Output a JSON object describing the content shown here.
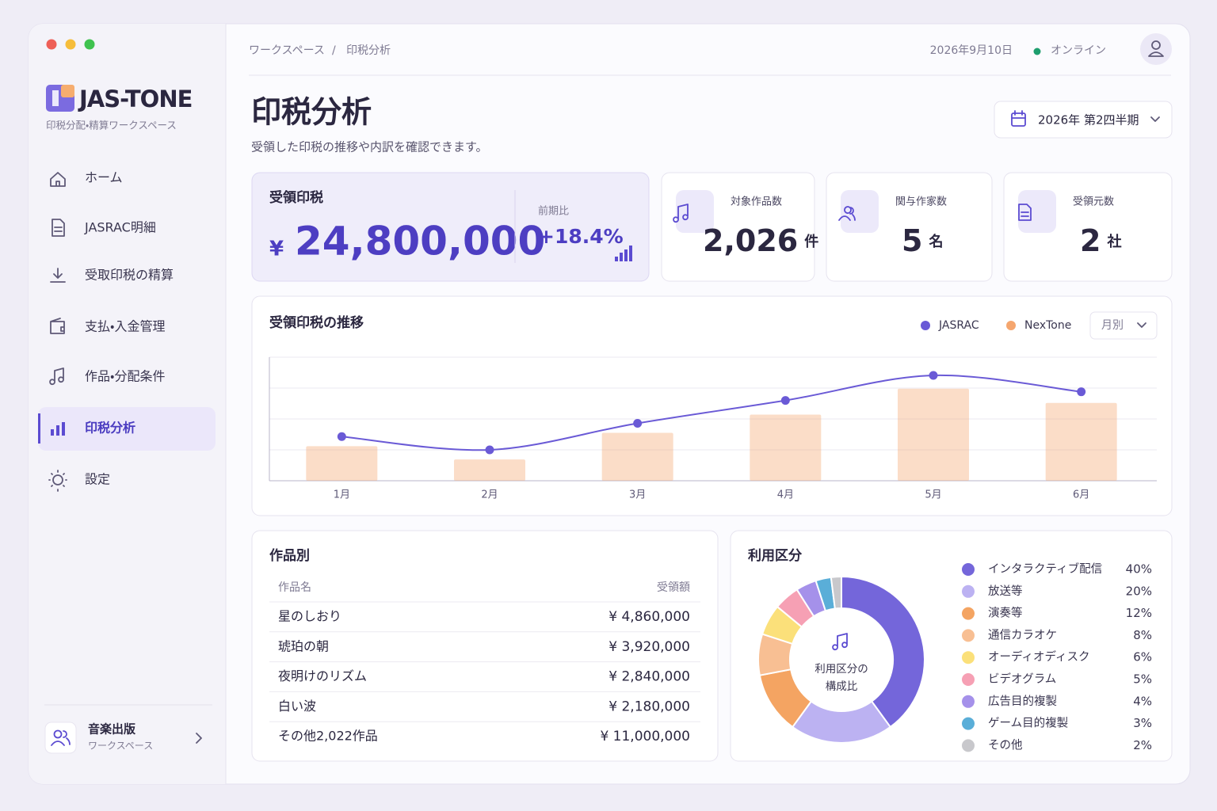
{
  "sidebar": {
    "brand": "JAS-TONE",
    "tagline": "印税分配・精算ワークスペース",
    "nav": [
      "ホーム",
      "JASRAC明細",
      "受取印税の精算",
      "支払・入金管理",
      "作品・分配条件",
      "印税分析",
      "設定"
    ],
    "active_nav": 5,
    "account": {
      "name": "音楽出版",
      "role": "ワークスペース"
    }
  },
  "header": {
    "breadcrumb": [
      "ワークスペース",
      "/",
      "印税分析"
    ],
    "date": "2026年9月10日",
    "status": "オンライン"
  },
  "page": {
    "title": "印税分析",
    "subtitle": "受領した印税の推移や内訳を確認できます。",
    "period": "2026年 第2四半期"
  },
  "kpis": {
    "main": {
      "label": "受領印税",
      "currency": "¥",
      "value": "24,800,000",
      "change_label": "前期比",
      "change": "+18.4%"
    },
    "cards": [
      {
        "label": "対象作品数",
        "value": "2,026",
        "unit": "件"
      },
      {
        "label": "関与作家数",
        "value": "5",
        "unit": "名"
      },
      {
        "label": "受領元数",
        "value": "2",
        "unit": "社"
      }
    ]
  },
  "table": {
    "title": "作品別",
    "columns": [
      "作品名",
      "受領額"
    ],
    "rows": [
      [
        "星のしおり",
        "¥ 4,860,000"
      ],
      [
        "琥珀の朝",
        "¥ 3,920,000"
      ],
      [
        "夜明けのリズム",
        "¥ 2,840,000"
      ],
      [
        "白い波",
        "¥ 2,180,000"
      ],
      [
        "その他2,022作品",
        "¥ 11,000,000"
      ]
    ]
  },
  "chart_data": [
    {
      "type": "combo",
      "title": "受領印税の推移",
      "period_select": "月別",
      "categories": [
        "1月",
        "2月",
        "3月",
        "4月",
        "5月",
        "6月"
      ],
      "series": [
        {
          "name": "JASRAC",
          "kind": "line",
          "color": "#6a5ad6",
          "values": [
            1.43,
            1.0,
            1.86,
            2.6,
            3.41,
            2.88
          ]
        },
        {
          "name": "NexTone",
          "kind": "bar",
          "color": "#f5a66e",
          "values": [
            1.12,
            0.69,
            1.55,
            2.14,
            2.98,
            2.52
          ]
        }
      ],
      "ylim": [
        0,
        4
      ]
    },
    {
      "type": "donut",
      "title": "利用区分",
      "center_label": [
        "利用区分の",
        "構成比"
      ],
      "categories": [
        "インタラクティブ配信",
        "放送等",
        "演奏等",
        "通信カラオケ",
        "オーディオディスク",
        "ビデオグラム",
        "広告目的複製",
        "ゲーム目的複製",
        "その他"
      ],
      "values": [
        40,
        20,
        12,
        8,
        6,
        5,
        4,
        3,
        2
      ],
      "value_labels": [
        "40%",
        "20%",
        "12%",
        "8%",
        "6%",
        "5%",
        "4%",
        "3%",
        "2%"
      ],
      "colors": [
        "#7466da",
        "#bcb2f2",
        "#f4a462",
        "#f8bf93",
        "#fbe07a",
        "#f6a0b4",
        "#a591ea",
        "#5aaed8",
        "#c8c8cc"
      ]
    }
  ]
}
